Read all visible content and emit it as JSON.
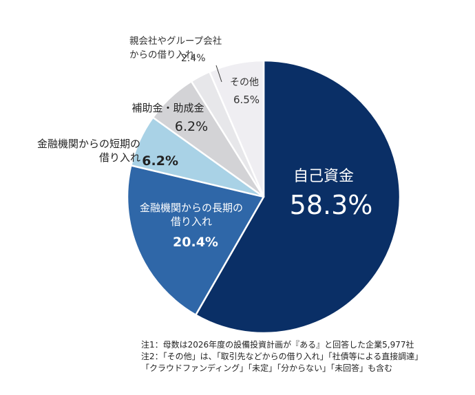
{
  "chart_data": {
    "type": "pie",
    "title": "",
    "start": "top",
    "direction": "clockwise",
    "slices": [
      {
        "label": "自己資金",
        "value": 58.3,
        "value_label": "58.3%",
        "color": "#0a2f66",
        "label_color": "#ffffff"
      },
      {
        "label": "金融機関からの長期の借り入れ",
        "label_lines": [
          "金融機関からの長期の",
          "借り入れ"
        ],
        "value": 20.4,
        "value_label": "20.4%",
        "color": "#2f67a8",
        "label_color": "#ffffff"
      },
      {
        "label": "金融機関からの短期の借り入れ",
        "label_lines": [
          "金融機関からの短期の",
          "借り入れ"
        ],
        "value": 6.2,
        "value_label": "6.2%",
        "color": "#a9d2e6",
        "label_color": "#222222"
      },
      {
        "label": "補助金・助成金",
        "label_lines": [
          "補助金・助成金"
        ],
        "value": 6.2,
        "value_label": "6.2%",
        "color": "#d3d3d6",
        "label_color": "#222222"
      },
      {
        "label": "親会社やグループ会社からの借り入れ",
        "label_lines": [
          "親会社やグループ会社",
          "からの借り入れ"
        ],
        "value": 2.4,
        "value_label": "2.4%",
        "color": "#e7e7ea",
        "label_color": "#333333"
      },
      {
        "label": "その他",
        "label_lines": [
          "その他"
        ],
        "value": 6.5,
        "value_label": "6.5%",
        "color": "#efeef2",
        "label_color": "#333333"
      }
    ]
  },
  "notes": [
    "注1：母数は2026年度の設備投資計画が『ある』と回答した企業5,977社",
    "注2：「その他」は、「取引先などからの借り入れ」「社債等による直接調達」",
    "「クラウドファンディング」「未定」「分からない」「未回答」も含む"
  ]
}
